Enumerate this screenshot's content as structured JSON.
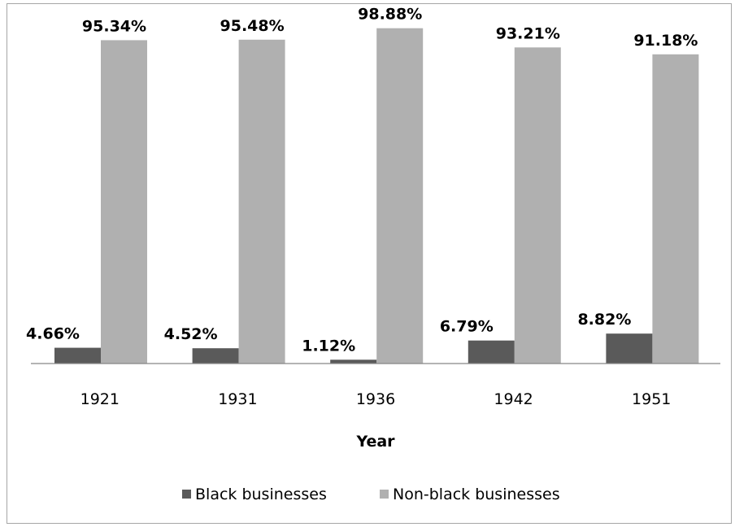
{
  "chart_data": {
    "type": "bar",
    "title": "",
    "xlabel": "Year",
    "ylabel": "",
    "ylim": [
      0,
      100
    ],
    "grid": false,
    "legend_position": "bottom",
    "categories": [
      "1921",
      "1931",
      "1936",
      "1942",
      "1951"
    ],
    "series": [
      {
        "name": "Black businesses",
        "color": "#5a5a5a",
        "values": [
          4.66,
          4.52,
          1.12,
          6.79,
          8.82
        ],
        "labels": [
          "4.66%",
          "4.52%",
          "1.12%",
          "6.79%",
          "8.82%"
        ]
      },
      {
        "name": "Non-black businesses",
        "color": "#b0b0b0",
        "values": [
          95.34,
          95.48,
          98.88,
          93.21,
          91.18
        ],
        "labels": [
          "95.34%",
          "95.48%",
          "98.88%",
          "93.21%",
          "91.18%"
        ]
      }
    ]
  }
}
